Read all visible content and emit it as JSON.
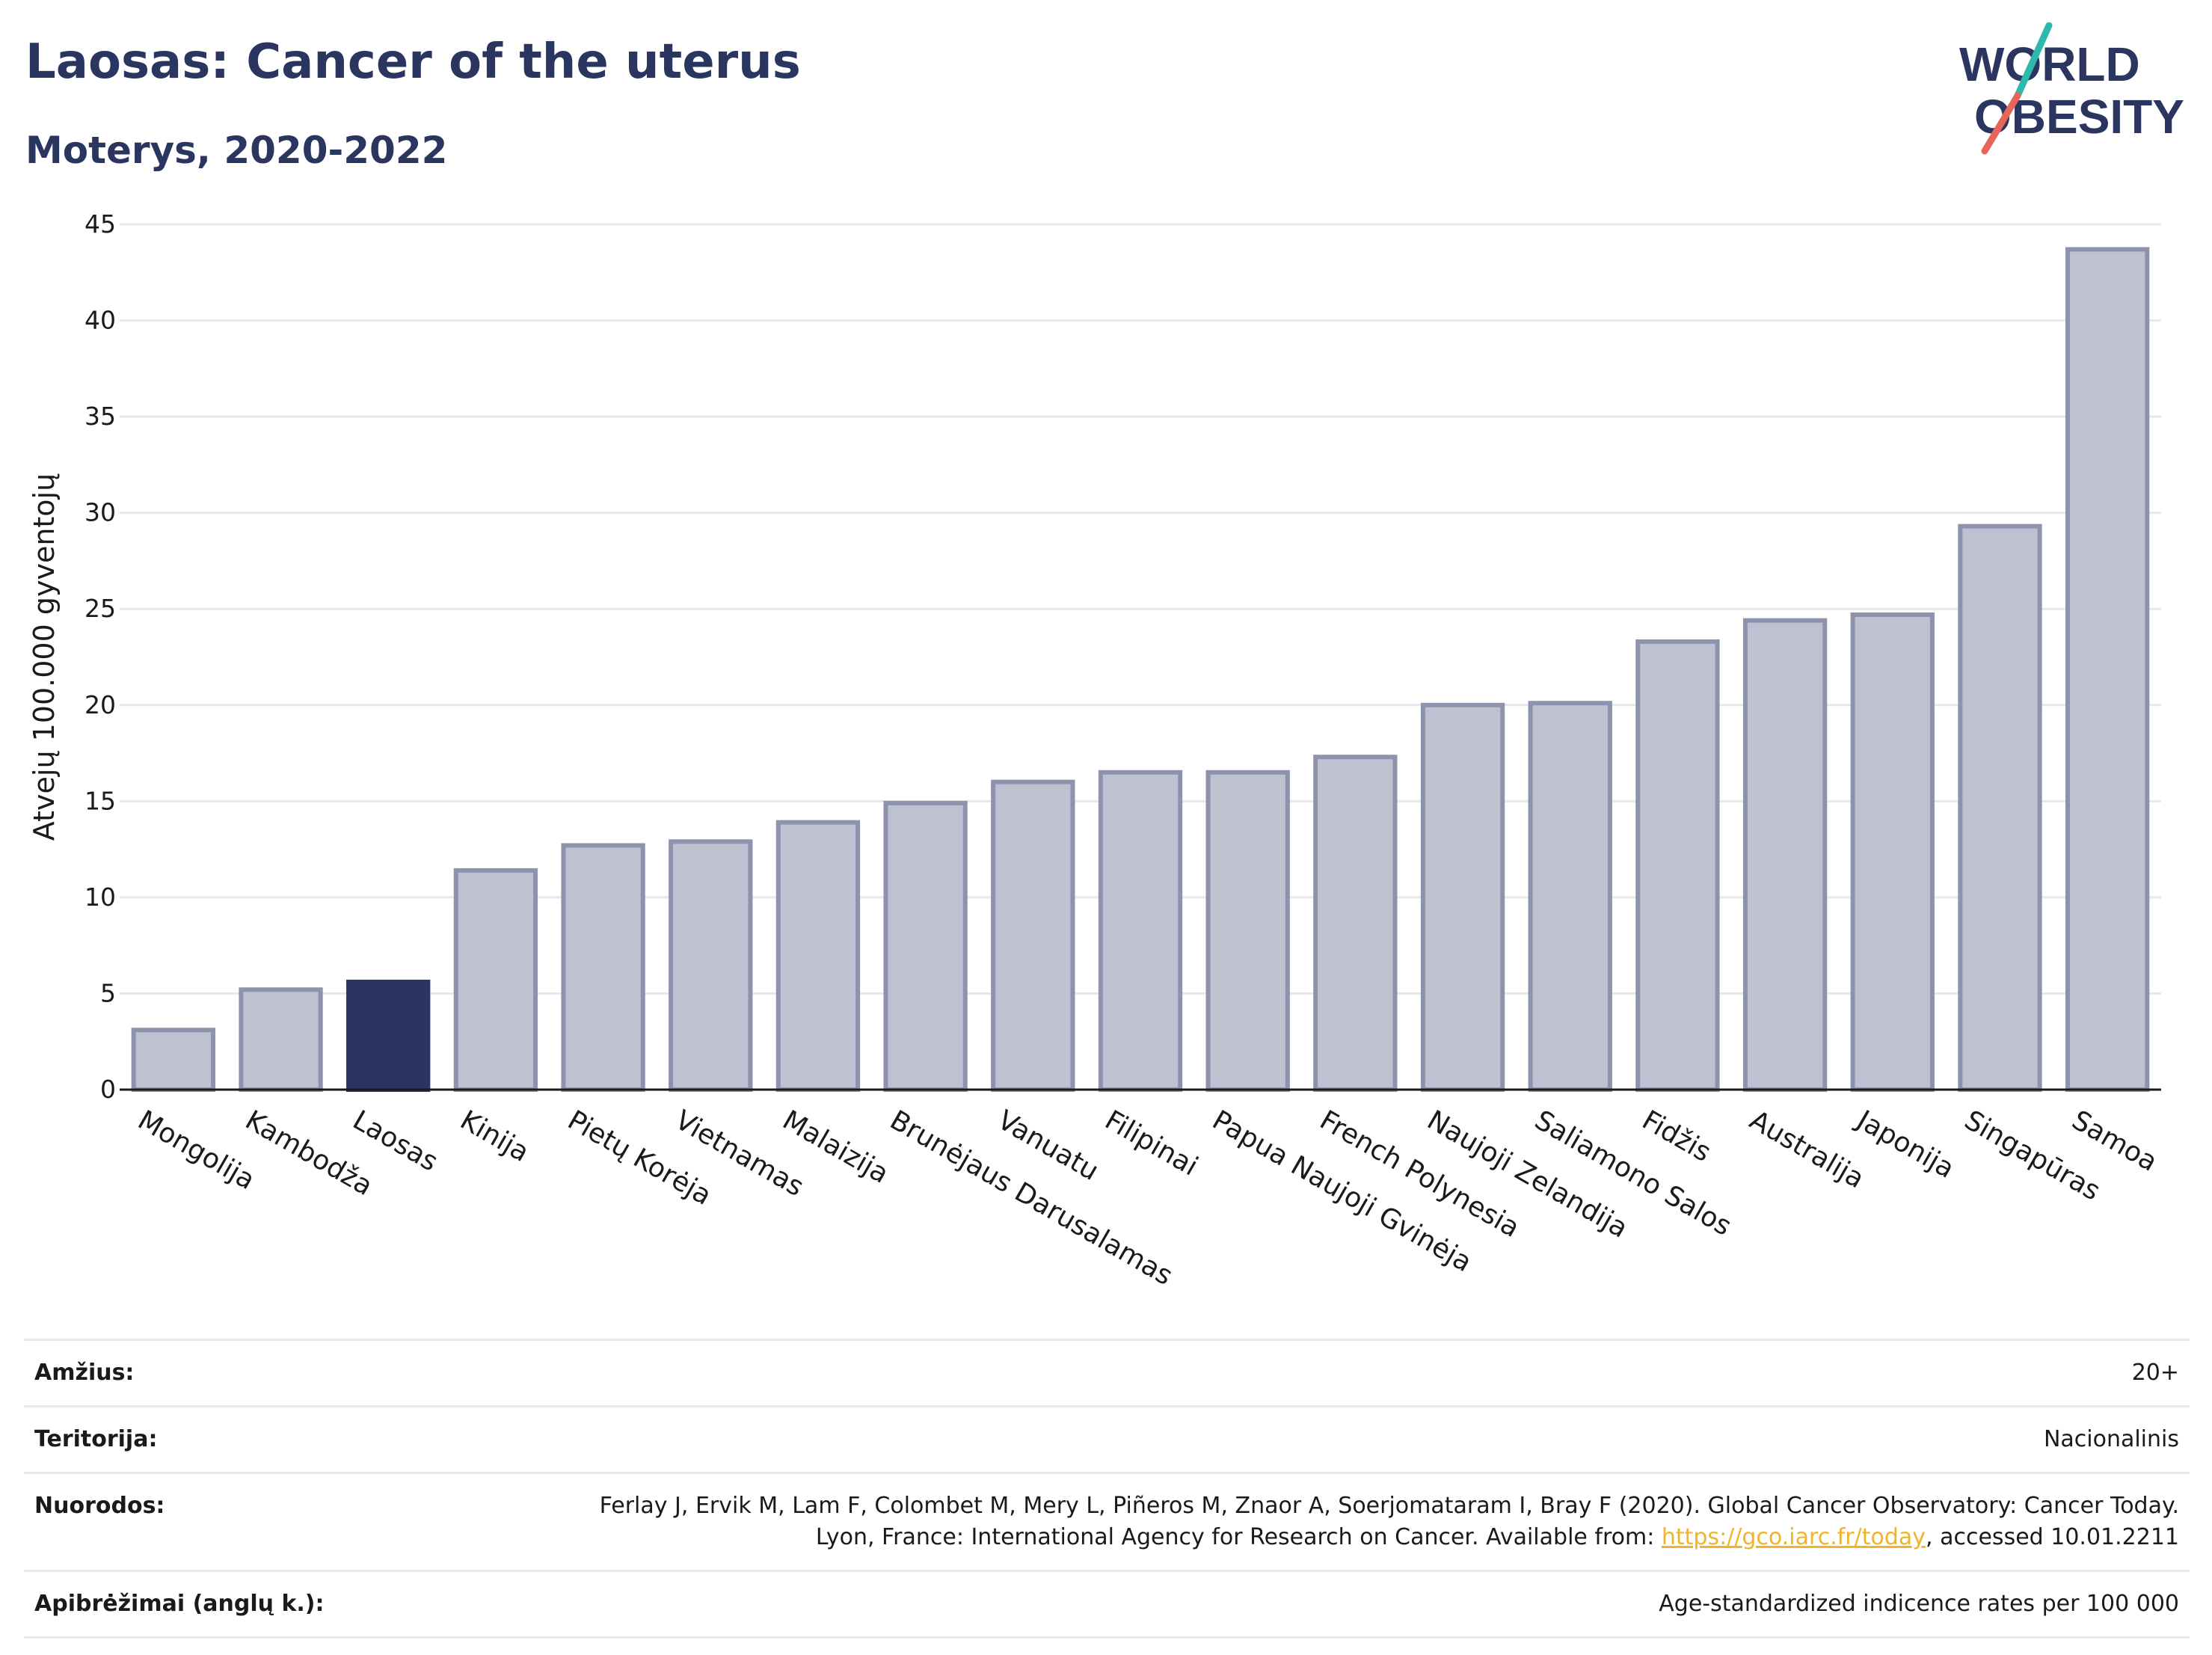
{
  "header": {
    "title": "Laosas: Cancer of the uterus",
    "subtitle": "Moterys, 2020-2022"
  },
  "logo": {
    "line1": "WORLD",
    "line2": "OBESITY",
    "accent_teal": "#2fb8ac",
    "accent_coral": "#e8655a",
    "text_color": "#2b3660"
  },
  "chart_data": {
    "type": "bar",
    "title": "",
    "xlabel": "",
    "ylabel": "Atvejų 100.000 gyventojų",
    "ylim": [
      0,
      45
    ],
    "yticks": [
      0,
      5,
      10,
      15,
      20,
      25,
      30,
      35,
      40,
      45
    ],
    "grid": true,
    "highlight": "Laosas",
    "colors": {
      "bar": "#bec2d0",
      "bar_edge": "#8d93ad",
      "highlight": "#2b3660"
    },
    "categories": [
      "Mongolija",
      "Kambodža",
      "Laosas",
      "Kinija",
      "Pietų Korėja",
      "Vietnamas",
      "Malaizija",
      "Brunėjaus Darusalamas",
      "Vanuatu",
      "Filipinai",
      "Papua Naujoji Gvinėja",
      "French Polynesia",
      "Naujoji Zelandija",
      "Saliamono Salos",
      "Fidžis",
      "Australija",
      "Japonija",
      "Singapūras",
      "Samoa"
    ],
    "values": [
      3.1,
      5.2,
      5.6,
      11.4,
      12.7,
      12.9,
      13.9,
      14.9,
      16.0,
      16.5,
      16.5,
      17.3,
      20.0,
      20.1,
      23.3,
      24.4,
      24.7,
      29.3,
      43.7
    ]
  },
  "meta": {
    "age_label": "Amžius:",
    "age_value": "20+",
    "territory_label": "Teritorija:",
    "territory_value": "Nacionalinis",
    "refs_label": "Nuorodos:",
    "refs_text_before": "Ferlay J, Ervik M, Lam F, Colombet M, Mery L, Piñeros M, Znaor A, Soerjomataram I, Bray F (2020). Global Cancer Observatory: Cancer Today. Lyon, France: International Agency for Research on Cancer. Available from: ",
    "refs_link": "https://gco.iarc.fr/today",
    "refs_text_after": ", accessed 10.01.2211",
    "def_label": "Apibrėžimai (anglų k.):",
    "def_value": "Age-standardized indicence rates per 100 000"
  }
}
